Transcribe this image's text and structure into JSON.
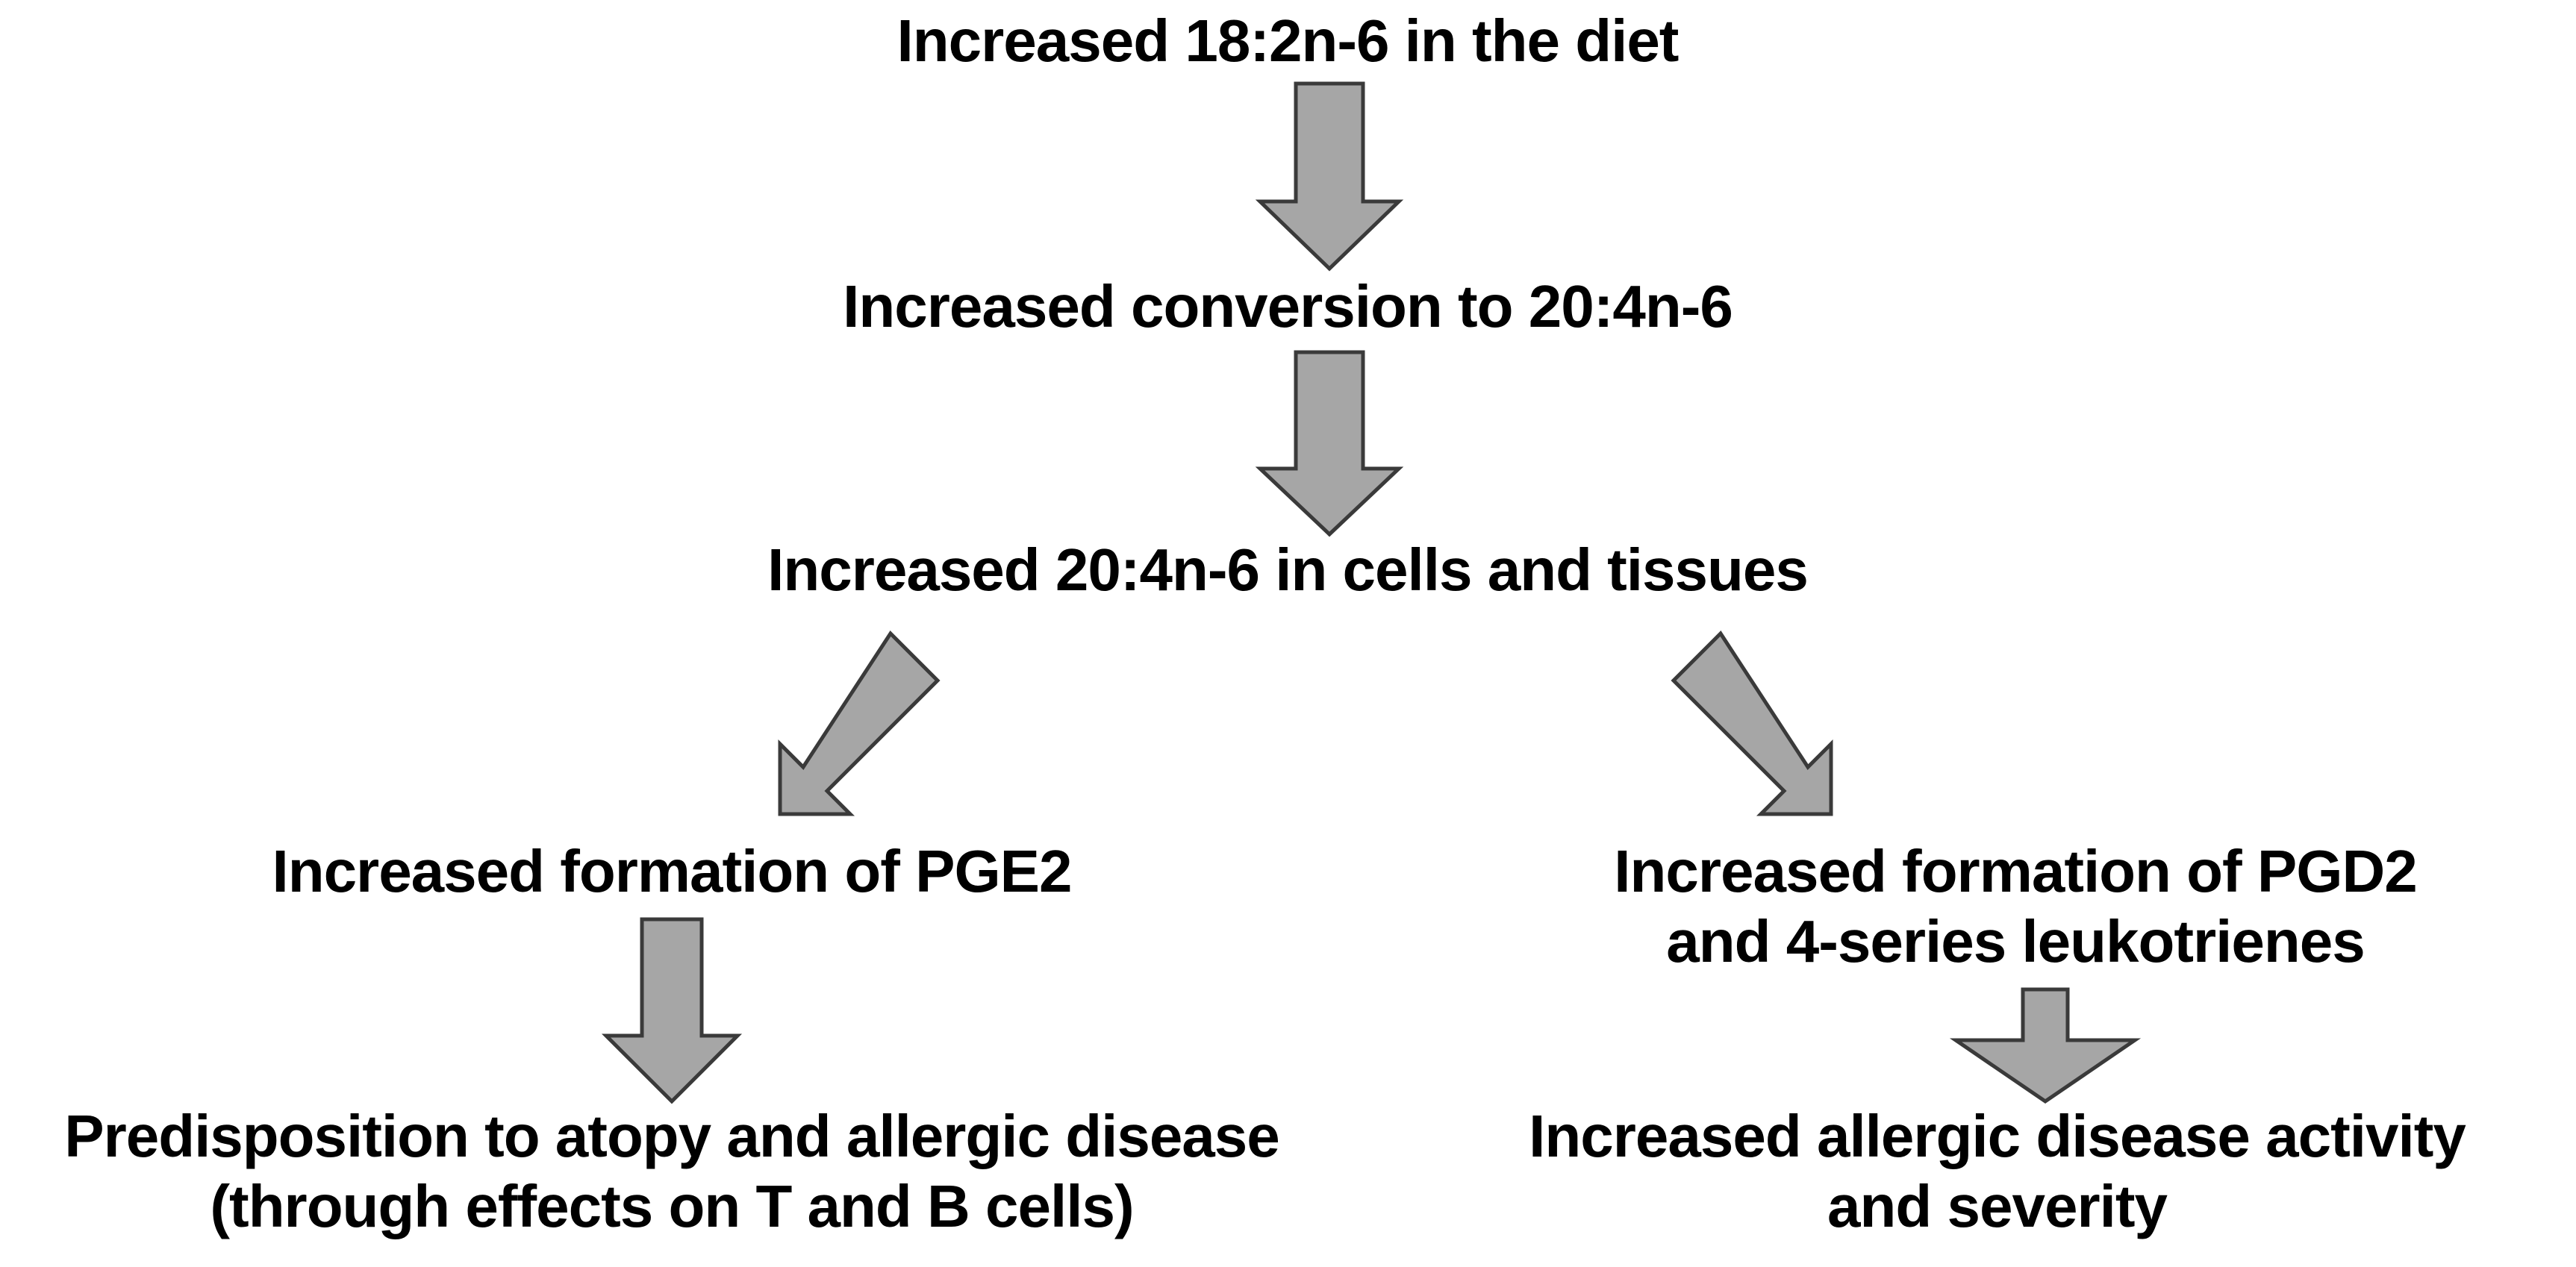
{
  "diagram": {
    "nodes": {
      "diet": {
        "lines": [
          "Increased 18:2n-6 in the diet"
        ]
      },
      "conversion": {
        "lines": [
          "Increased conversion to 20:4n-6"
        ]
      },
      "tissues": {
        "lines": [
          "Increased 20:4n-6 in cells and tissues"
        ]
      },
      "pge2": {
        "lines": [
          "Increased formation of PGE2"
        ]
      },
      "pgd2": {
        "lines": [
          "Increased formation of PGD2",
          "and 4-series leukotrienes"
        ]
      },
      "atopy": {
        "lines": [
          "Predisposition to atopy and allergic disease",
          "(through effects on T and B cells)"
        ]
      },
      "allergic": {
        "lines": [
          "Increased allergic disease activity",
          "and severity"
        ]
      }
    },
    "arrows": [
      {
        "from": "diet",
        "to": "conversion"
      },
      {
        "from": "conversion",
        "to": "tissues"
      },
      {
        "from": "tissues",
        "to": "pge2"
      },
      {
        "from": "tissues",
        "to": "pgd2"
      },
      {
        "from": "pge2",
        "to": "atopy"
      },
      {
        "from": "pgd2",
        "to": "allergic"
      }
    ],
    "colors": {
      "arrow_fill": "#a6a6a6",
      "arrow_stroke": "#3a3a3a",
      "text": "#000000",
      "background": "#ffffff"
    }
  }
}
